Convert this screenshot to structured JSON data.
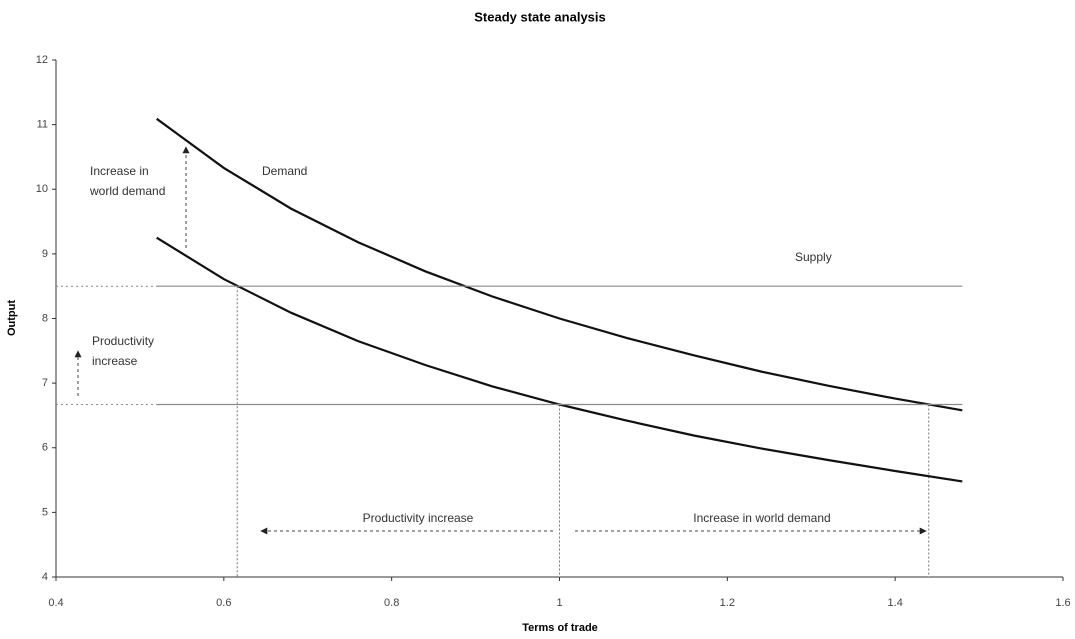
{
  "chart_data": {
    "type": "line",
    "title": "Steady state analysis",
    "x_label": "Terms of trade",
    "y_label": "Output",
    "xlim": [
      0.4,
      1.6
    ],
    "xticks": [
      0.4,
      0.6,
      0.8,
      1,
      1.2,
      1.4,
      1.6
    ],
    "ylim": [
      4,
      12
    ],
    "yticks": [
      4,
      5,
      6,
      7,
      8,
      9,
      10,
      11,
      12
    ],
    "series": [
      {
        "color": "#111111",
        "x": [
          0.52,
          0.6,
          0.68,
          0.76,
          0.84,
          0.92,
          1.0,
          1.08,
          1.16,
          1.24,
          1.32,
          1.4,
          1.48
        ],
        "values": [
          11.09,
          10.33,
          9.7,
          9.18,
          8.73,
          8.34,
          8.0,
          7.7,
          7.43,
          7.18,
          6.96,
          6.76,
          6.58
        ]
      },
      {
        "color": "#111111",
        "x": [
          0.52,
          0.6,
          0.68,
          0.76,
          0.84,
          0.92,
          1.0,
          1.08,
          1.16,
          1.24,
          1.32,
          1.4,
          1.48
        ],
        "values": [
          9.25,
          8.61,
          8.09,
          7.65,
          7.28,
          6.95,
          6.67,
          6.42,
          6.19,
          5.99,
          5.81,
          5.64,
          5.48
        ]
      },
      {
        "color": "#8a8a8a",
        "x": [
          0.52,
          1.48
        ],
        "values": [
          8.5,
          8.5
        ]
      },
      {
        "color": "#8a8a8a",
        "x": [
          0.52,
          1.48
        ],
        "values": [
          6.67,
          6.67
        ]
      }
    ],
    "drop_lines": {
      "x": [
        0.616,
        1.0,
        1.44
      ],
      "values": [
        8.5,
        6.67,
        6.67
      ]
    },
    "annotations": [
      "Demand",
      "Supply",
      "Increase in",
      "world demand",
      "Productivity",
      "increase",
      "Productivity increase",
      "Increase in world demand"
    ]
  }
}
